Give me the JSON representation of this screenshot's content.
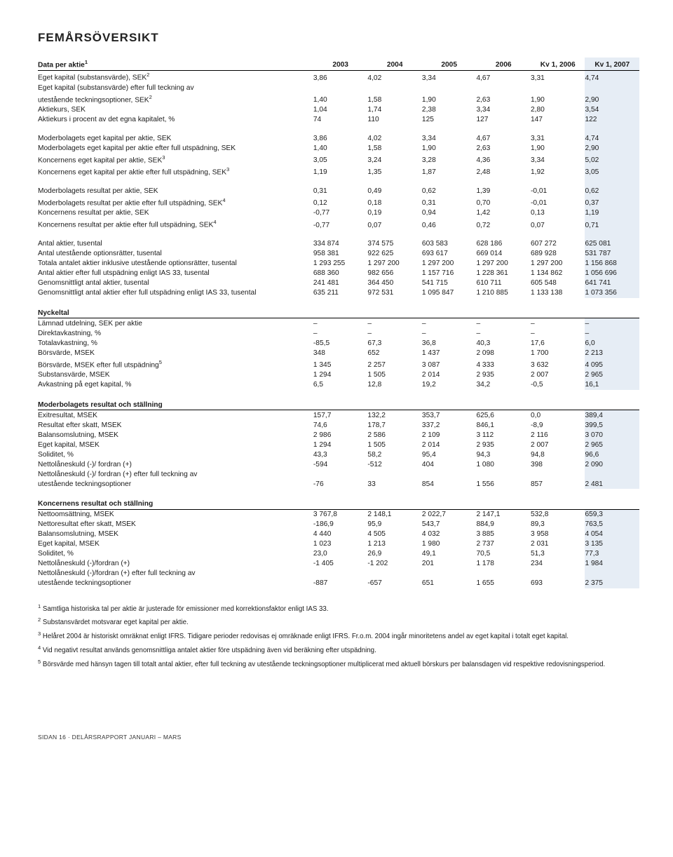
{
  "title": "FEMÅRSÖVERSIKT",
  "header": {
    "h1": "Data per aktie",
    "sup1": "1",
    "cols": [
      "2003",
      "2004",
      "2005",
      "2006",
      "Kv 1, 2006",
      "Kv 1, 2007"
    ]
  },
  "block1": [
    {
      "label": "Eget kapital (substansvärde), SEK",
      "sup": "2",
      "v": [
        "3,86",
        "4,02",
        "3,34",
        "4,67",
        "3,31",
        "4,74"
      ]
    },
    {
      "label": "Eget kapital (substansvärde) efter full teckning av",
      "v": [
        "",
        "",
        "",
        "",
        "",
        ""
      ]
    },
    {
      "label": "utestående teckningsoptioner, SEK",
      "sup": "2",
      "v": [
        "1,40",
        "1,58",
        "1,90",
        "2,63",
        "1,90",
        "2,90"
      ]
    },
    {
      "label": "Aktiekurs, SEK",
      "v": [
        "1,04",
        "1,74",
        "2,38",
        "3,34",
        "2,80",
        "3,54"
      ]
    },
    {
      "label": "Aktiekurs i procent av det egna kapitalet, %",
      "v": [
        "74",
        "110",
        "125",
        "127",
        "147",
        "122"
      ]
    }
  ],
  "block2": [
    {
      "label": "Moderbolagets eget kapital per aktie, SEK",
      "v": [
        "3,86",
        "4,02",
        "3,34",
        "4,67",
        "3,31",
        "4,74"
      ]
    },
    {
      "label": "Moderbolagets eget kapital per aktie efter full utspädning, SEK",
      "v": [
        "1,40",
        "1,58",
        "1,90",
        "2,63",
        "1,90",
        "2,90"
      ]
    },
    {
      "label": "Koncernens eget kapital per aktie, SEK",
      "sup": "3",
      "v": [
        "3,05",
        "3,24",
        "3,28",
        "4,36",
        "3,34",
        "5,02"
      ]
    },
    {
      "label": "Koncernens eget kapital per aktie efter full utspädning, SEK",
      "sup": "3",
      "v": [
        "1,19",
        "1,35",
        "1,87",
        "2,48",
        "1,92",
        "3,05"
      ]
    }
  ],
  "block3": [
    {
      "label": "Moderbolagets resultat per aktie, SEK",
      "v": [
        "0,31",
        "0,49",
        "0,62",
        "1,39",
        "-0,01",
        "0,62"
      ]
    },
    {
      "label": "Moderbolagets resultat per aktie efter full utspädning, SEK",
      "sup": "4",
      "v": [
        "0,12",
        "0,18",
        "0,31",
        "0,70",
        "-0,01",
        "0,37"
      ]
    },
    {
      "label": "Koncernens resultat per aktie, SEK",
      "v": [
        "-0,77",
        "0,19",
        "0,94",
        "1,42",
        "0,13",
        "1,19"
      ]
    },
    {
      "label": "Koncernens resultat per aktie efter full utspädning, SEK",
      "sup": "4",
      "v": [
        "-0,77",
        "0,07",
        "0,46",
        "0,72",
        "0,07",
        "0,71"
      ]
    }
  ],
  "block4": [
    {
      "label": "Antal aktier, tusental",
      "v": [
        "334 874",
        "374 575",
        "603 583",
        "628 186",
        "607 272",
        "625 081"
      ]
    },
    {
      "label": "Antal utestående optionsrätter, tusental",
      "v": [
        "958 381",
        "922 625",
        "693 617",
        "669 014",
        "689 928",
        "531 787"
      ]
    },
    {
      "label": "Totala antalet aktier inklusive utestående optionsrätter, tusental",
      "v": [
        "1 293 255",
        "1 297 200",
        "1 297 200",
        "1 297 200",
        "1 297 200",
        "1 156 868"
      ]
    },
    {
      "label": "Antal aktier efter full utspädning enligt IAS 33, tusental",
      "v": [
        "688 360",
        "982 656",
        "1 157 716",
        "1 228 361",
        "1 134 862",
        "1 056 696"
      ]
    },
    {
      "label": "Genomsnittligt antal aktier, tusental",
      "v": [
        "241 481",
        "364 450",
        "541 715",
        "610 711",
        "605 548",
        "641 741"
      ]
    },
    {
      "label": "Genomsnittligt antal aktier efter full utspädning enligt IAS 33, tusental",
      "v": [
        "635 211",
        "972 531",
        "1 095 847",
        "1 210 885",
        "1 133 138",
        "1 073 356"
      ]
    }
  ],
  "nyckeltal_title": "Nyckeltal",
  "nyckeltal": [
    {
      "label": "Lämnad utdelning, SEK per aktie",
      "v": [
        "–",
        "–",
        "–",
        "–",
        "–",
        "–"
      ]
    },
    {
      "label": "Direktavkastning, %",
      "v": [
        "–",
        "–",
        "–",
        "–",
        "–",
        "–"
      ]
    },
    {
      "label": "Totalavkastning, %",
      "v": [
        "-85,5",
        "67,3",
        "36,8",
        "40,3",
        "17,6",
        "6,0"
      ]
    },
    {
      "label": "Börsvärde, MSEK",
      "v": [
        "348",
        "652",
        "1 437",
        "2 098",
        "1 700",
        "2 213"
      ]
    },
    {
      "label": "Börsvärde, MSEK efter full utspädning",
      "sup": "5",
      "v": [
        "1 345",
        "2 257",
        "3 087",
        "4 333",
        "3 632",
        "4 095"
      ]
    },
    {
      "label": "Substansvärde, MSEK",
      "v": [
        "1 294",
        "1 505",
        "2 014",
        "2 935",
        "2 007",
        "2 965"
      ]
    },
    {
      "label": "Avkastning på eget kapital, %",
      "v": [
        "6,5",
        "12,8",
        "19,2",
        "34,2",
        "-0,5",
        "16,1"
      ]
    }
  ],
  "moder_title": "Moderbolagets resultat och ställning",
  "moder": [
    {
      "label": "Exitresultat, MSEK",
      "v": [
        "157,7",
        "132,2",
        "353,7",
        "625,6",
        "0,0",
        "389,4"
      ]
    },
    {
      "label": "Resultat efter skatt, MSEK",
      "v": [
        "74,6",
        "178,7",
        "337,2",
        "846,1",
        "-8,9",
        "399,5"
      ]
    },
    {
      "label": "Balansomslutning, MSEK",
      "v": [
        "2 986",
        "2 586",
        "2 109",
        "3 112",
        "2 116",
        "3 070"
      ]
    },
    {
      "label": "Eget kapital, MSEK",
      "v": [
        "1 294",
        "1 505",
        "2 014",
        "2 935",
        "2 007",
        "2 965"
      ]
    },
    {
      "label": "Soliditet, %",
      "v": [
        "43,3",
        "58,2",
        "95,4",
        "94,3",
        "94,8",
        "96,6"
      ]
    },
    {
      "label": "Nettolåneskuld (-)/ fordran (+)",
      "v": [
        "-594",
        "-512",
        "404",
        "1 080",
        "398",
        "2 090"
      ]
    },
    {
      "label": "Nettolåneskuld (-)/ fordran (+) efter full teckning av",
      "v": [
        "",
        "",
        "",
        "",
        "",
        ""
      ]
    },
    {
      "label": "utestående teckningsoptioner",
      "v": [
        "-76",
        "33",
        "854",
        "1 556",
        "857",
        "2 481"
      ]
    }
  ],
  "koncern_title": "Koncernens resultat och ställning",
  "koncern": [
    {
      "label": "Nettoomsättning, MSEK",
      "v": [
        "3 767,8",
        "2 148,1",
        "2 022,7",
        "2 147,1",
        "532,8",
        "659,3"
      ]
    },
    {
      "label": "Nettoresultat efter skatt, MSEK",
      "v": [
        "-186,9",
        "95,9",
        "543,7",
        "884,9",
        "89,3",
        "763,5"
      ]
    },
    {
      "label": "Balansomslutning, MSEK",
      "v": [
        "4 440",
        "4 505",
        "4 032",
        "3 885",
        "3 958",
        "4 054"
      ]
    },
    {
      "label": "Eget kapital, MSEK",
      "v": [
        "1 023",
        "1 213",
        "1 980",
        "2 737",
        "2 031",
        "3 135"
      ]
    },
    {
      "label": "Soliditet, %",
      "v": [
        "23,0",
        "26,9",
        "49,1",
        "70,5",
        "51,3",
        "77,3"
      ]
    },
    {
      "label": "Nettolåneskuld (-)/fordran (+)",
      "v": [
        "-1 405",
        "-1 202",
        "201",
        "1 178",
        "234",
        "1 984"
      ]
    },
    {
      "label": "Nettolåneskuld (-)/fordran (+) efter full teckning av",
      "v": [
        "",
        "",
        "",
        "",
        "",
        ""
      ]
    },
    {
      "label": "utestående teckningsoptioner",
      "v": [
        "-887",
        "-657",
        "651",
        "1 655",
        "693",
        "2 375"
      ]
    }
  ],
  "footnotes": [
    {
      "n": "1",
      "t": "Samtliga historiska tal per aktie är justerade för emissioner med korrektionsfaktor enligt IAS 33."
    },
    {
      "n": "2",
      "t": "Substansvärdet motsvarar eget kapital per aktie."
    },
    {
      "n": "3",
      "t": "Helåret 2004 är historiskt omräknat enligt IFRS. Tidigare perioder redovisas ej omräknade enligt IFRS. Fr.o.m. 2004 ingår minoritetens andel av eget kapital i totalt eget kapital."
    },
    {
      "n": "4",
      "t": "Vid negativt resultat används genomsnittliga antalet aktier före utspädning även vid beräkning efter utspädning."
    },
    {
      "n": "5",
      "t": "Börsvärde med hänsyn tagen till totalt antal aktier, efter full teckning av utestående teckningsoptioner multiplicerat med aktuell börskurs per balansdagen vid respektive redovisningsperiod."
    }
  ],
  "footer": "SIDAN 16 · DELÅRSRAPPORT JANUARI – MARS",
  "colors": {
    "highlight": "#e6edf5"
  }
}
